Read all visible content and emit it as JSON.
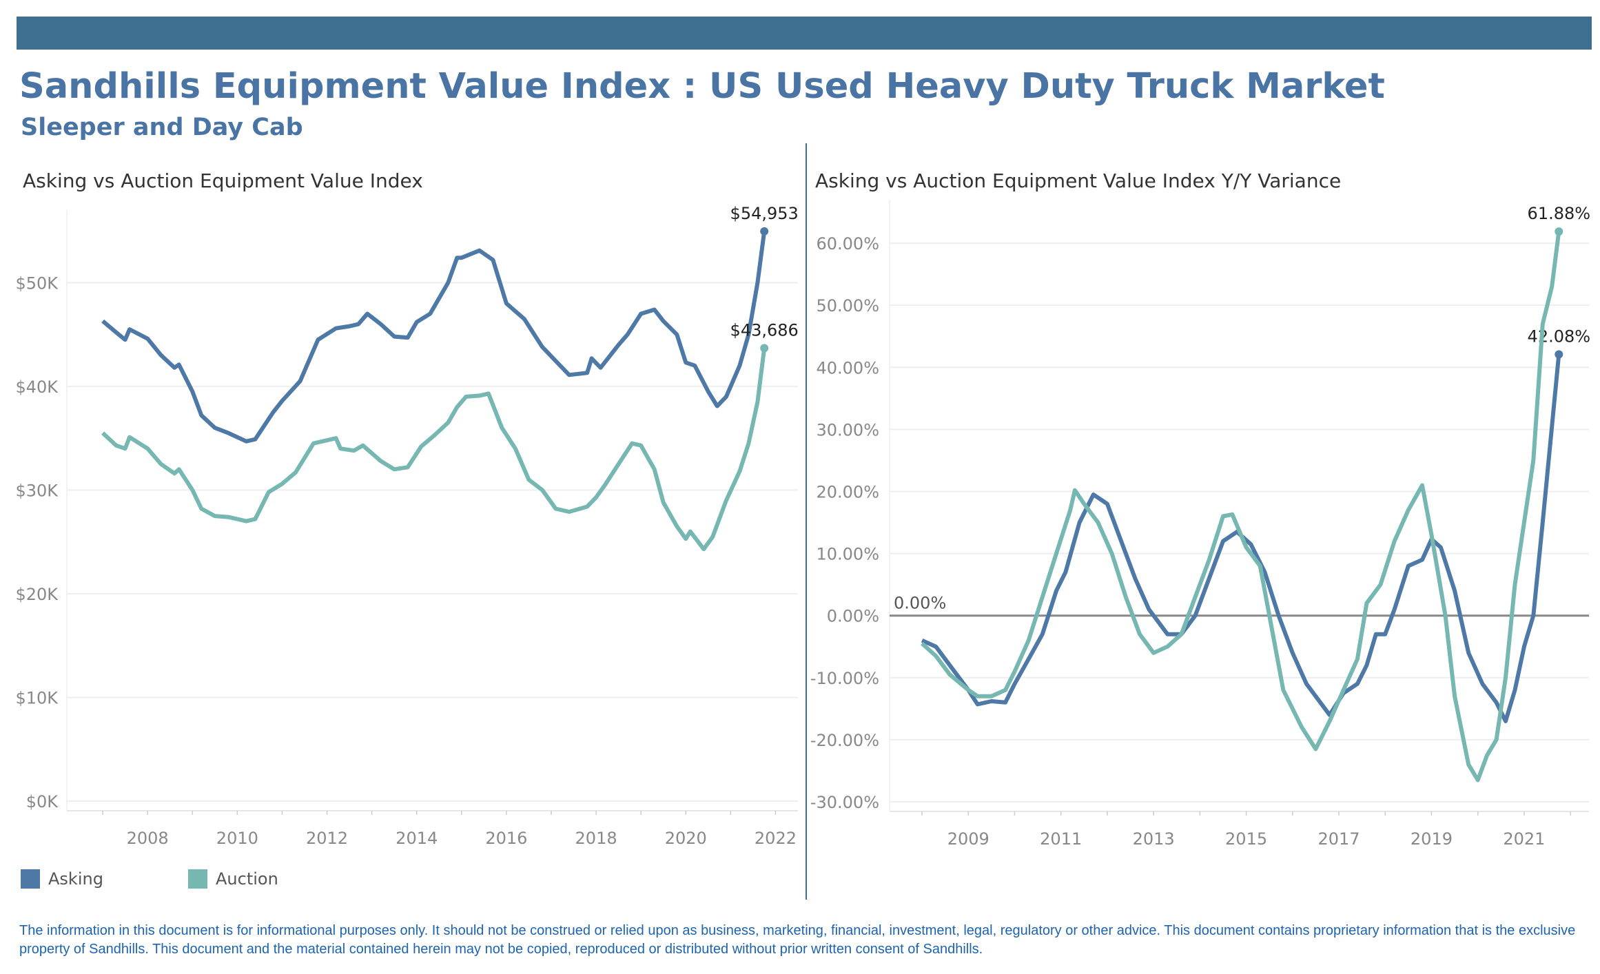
{
  "header": {
    "title": "Sandhills Equipment Value Index : US Used Heavy Duty Truck Market",
    "subtitle": "Sleeper and Day Cab"
  },
  "colors": {
    "asking": "#4e79a7",
    "auction": "#76b7b2",
    "bar": "#3d7090",
    "title": "#4a74a3"
  },
  "legend": [
    {
      "name": "Asking",
      "color": "#4e79a7"
    },
    {
      "name": "Auction",
      "color": "#76b7b2"
    }
  ],
  "footer": "The information in this document is for informational purposes only.  It should not be construed or relied upon as business, marketing, financial, investment, legal, regulatory or other advice. This document contains proprietary information that is the exclusive property of Sandhills. This document and the material contained herein may not be copied, reproduced or distributed without prior written consent of Sandhills.",
  "chart_data": [
    {
      "type": "line",
      "title": "Asking vs Auction Equipment Value Index",
      "xlabel": "",
      "ylabel": "",
      "xlim": [
        2006.2,
        2022.5
      ],
      "ylim": [
        0,
        57000
      ],
      "grid": true,
      "xticks": [
        2008,
        2010,
        2012,
        2014,
        2016,
        2018,
        2020,
        2022
      ],
      "xtick_labels": [
        "2008",
        "2010",
        "2012",
        "2014",
        "2016",
        "2018",
        "2020",
        "2022"
      ],
      "yticks": [
        0,
        10000,
        20000,
        30000,
        40000,
        50000
      ],
      "ytick_labels": [
        "$0K",
        "$10K",
        "$20K",
        "$30K",
        "$40K",
        "$50K"
      ],
      "series": [
        {
          "name": "Asking",
          "color": "#4e79a7",
          "end_label": "$54,953",
          "points": [
            [
              2007.0,
              46300
            ],
            [
              2007.3,
              45200
            ],
            [
              2007.5,
              44500
            ],
            [
              2007.6,
              45500
            ],
            [
              2008.0,
              44600
            ],
            [
              2008.3,
              43000
            ],
            [
              2008.6,
              41800
            ],
            [
              2008.7,
              42100
            ],
            [
              2009.0,
              39500
            ],
            [
              2009.2,
              37200
            ],
            [
              2009.5,
              36000
            ],
            [
              2009.8,
              35500
            ],
            [
              2010.2,
              34700
            ],
            [
              2010.4,
              34900
            ],
            [
              2010.8,
              37500
            ],
            [
              2011.0,
              38600
            ],
            [
              2011.4,
              40500
            ],
            [
              2011.8,
              44500
            ],
            [
              2012.2,
              45600
            ],
            [
              2012.5,
              45800
            ],
            [
              2012.7,
              46000
            ],
            [
              2012.9,
              47000
            ],
            [
              2013.2,
              46000
            ],
            [
              2013.5,
              44800
            ],
            [
              2013.8,
              44700
            ],
            [
              2014.0,
              46200
            ],
            [
              2014.3,
              47000
            ],
            [
              2014.7,
              50000
            ],
            [
              2014.9,
              52400
            ],
            [
              2015.0,
              52400
            ],
            [
              2015.4,
              53100
            ],
            [
              2015.7,
              52200
            ],
            [
              2016.0,
              48000
            ],
            [
              2016.4,
              46500
            ],
            [
              2016.8,
              43800
            ],
            [
              2017.2,
              42000
            ],
            [
              2017.4,
              41100
            ],
            [
              2017.8,
              41300
            ],
            [
              2017.9,
              42700
            ],
            [
              2018.1,
              41800
            ],
            [
              2018.5,
              44000
            ],
            [
              2018.7,
              45000
            ],
            [
              2019.0,
              47000
            ],
            [
              2019.3,
              47400
            ],
            [
              2019.5,
              46300
            ],
            [
              2019.8,
              45000
            ],
            [
              2020.0,
              42300
            ],
            [
              2020.2,
              42000
            ],
            [
              2020.5,
              39500
            ],
            [
              2020.7,
              38100
            ],
            [
              2020.9,
              39000
            ],
            [
              2021.2,
              42000
            ],
            [
              2021.4,
              45000
            ],
            [
              2021.6,
              50000
            ],
            [
              2021.75,
              54953
            ]
          ]
        },
        {
          "name": "Auction",
          "color": "#76b7b2",
          "end_label": "$43,686",
          "points": [
            [
              2007.0,
              35500
            ],
            [
              2007.3,
              34300
            ],
            [
              2007.5,
              34000
            ],
            [
              2007.6,
              35100
            ],
            [
              2008.0,
              34000
            ],
            [
              2008.3,
              32500
            ],
            [
              2008.6,
              31600
            ],
            [
              2008.7,
              32000
            ],
            [
              2009.0,
              30000
            ],
            [
              2009.2,
              28200
            ],
            [
              2009.5,
              27500
            ],
            [
              2009.8,
              27400
            ],
            [
              2010.2,
              27000
            ],
            [
              2010.4,
              27200
            ],
            [
              2010.7,
              29800
            ],
            [
              2011.0,
              30600
            ],
            [
              2011.3,
              31700
            ],
            [
              2011.7,
              34500
            ],
            [
              2012.0,
              34800
            ],
            [
              2012.2,
              35000
            ],
            [
              2012.3,
              34000
            ],
            [
              2012.6,
              33800
            ],
            [
              2012.8,
              34300
            ],
            [
              2013.2,
              32800
            ],
            [
              2013.5,
              32000
            ],
            [
              2013.8,
              32200
            ],
            [
              2014.1,
              34200
            ],
            [
              2014.4,
              35300
            ],
            [
              2014.7,
              36500
            ],
            [
              2014.9,
              38000
            ],
            [
              2015.1,
              39000
            ],
            [
              2015.4,
              39100
            ],
            [
              2015.6,
              39300
            ],
            [
              2015.9,
              36000
            ],
            [
              2016.2,
              34000
            ],
            [
              2016.5,
              31000
            ],
            [
              2016.8,
              30000
            ],
            [
              2017.1,
              28200
            ],
            [
              2017.4,
              27900
            ],
            [
              2017.8,
              28400
            ],
            [
              2018.0,
              29300
            ],
            [
              2018.2,
              30500
            ],
            [
              2018.5,
              32500
            ],
            [
              2018.8,
              34500
            ],
            [
              2019.0,
              34300
            ],
            [
              2019.3,
              32000
            ],
            [
              2019.5,
              28800
            ],
            [
              2019.8,
              26500
            ],
            [
              2020.0,
              25300
            ],
            [
              2020.1,
              26000
            ],
            [
              2020.4,
              24300
            ],
            [
              2020.6,
              25500
            ],
            [
              2020.9,
              29000
            ],
            [
              2021.2,
              31800
            ],
            [
              2021.4,
              34500
            ],
            [
              2021.6,
              38500
            ],
            [
              2021.75,
              43686
            ]
          ]
        }
      ]
    },
    {
      "type": "line",
      "title": "Asking vs Auction Equipment Value Index Y/Y Variance",
      "xlabel": "",
      "ylabel": "",
      "xlim": [
        2007.3,
        2022.4
      ],
      "ylim": [
        -30,
        67
      ],
      "grid": true,
      "xticks": [
        2009,
        2011,
        2013,
        2015,
        2017,
        2019,
        2021
      ],
      "xtick_labels": [
        "2009",
        "2011",
        "2013",
        "2015",
        "2017",
        "2019",
        "2021"
      ],
      "yticks": [
        -30,
        -20,
        -10,
        0,
        10,
        20,
        30,
        40,
        50,
        60
      ],
      "ytick_labels": [
        "-30.00%",
        "-20.00%",
        "-10.00%",
        "0.00%",
        "10.00%",
        "20.00%",
        "30.00%",
        "40.00%",
        "50.00%",
        "60.00%"
      ],
      "reference_line": {
        "value": 0,
        "label": "0.00%"
      },
      "series": [
        {
          "name": "Asking",
          "color": "#4e79a7",
          "end_label": "42.08%",
          "points": [
            [
              2008.0,
              -4
            ],
            [
              2008.3,
              -5
            ],
            [
              2008.6,
              -8
            ],
            [
              2009.0,
              -12
            ],
            [
              2009.2,
              -14.3
            ],
            [
              2009.5,
              -13.8
            ],
            [
              2009.8,
              -14
            ],
            [
              2010.0,
              -11
            ],
            [
              2010.3,
              -7
            ],
            [
              2010.6,
              -3
            ],
            [
              2010.9,
              4
            ],
            [
              2011.1,
              7
            ],
            [
              2011.4,
              15
            ],
            [
              2011.7,
              19.5
            ],
            [
              2012.0,
              18
            ],
            [
              2012.3,
              12
            ],
            [
              2012.6,
              6
            ],
            [
              2012.9,
              1
            ],
            [
              2013.1,
              -1
            ],
            [
              2013.3,
              -3
            ],
            [
              2013.6,
              -3
            ],
            [
              2013.9,
              0
            ],
            [
              2014.2,
              6
            ],
            [
              2014.5,
              12
            ],
            [
              2014.8,
              13.5
            ],
            [
              2015.1,
              11.5
            ],
            [
              2015.4,
              7
            ],
            [
              2015.7,
              0
            ],
            [
              2016.0,
              -6
            ],
            [
              2016.3,
              -11
            ],
            [
              2016.6,
              -14
            ],
            [
              2016.8,
              -16
            ],
            [
              2017.1,
              -12.5
            ],
            [
              2017.4,
              -11
            ],
            [
              2017.6,
              -8
            ],
            [
              2017.8,
              -3
            ],
            [
              2018.0,
              -3
            ],
            [
              2018.2,
              1
            ],
            [
              2018.5,
              8
            ],
            [
              2018.8,
              9
            ],
            [
              2019.0,
              12.3
            ],
            [
              2019.2,
              11
            ],
            [
              2019.5,
              4
            ],
            [
              2019.8,
              -6
            ],
            [
              2020.1,
              -11
            ],
            [
              2020.4,
              -14
            ],
            [
              2020.6,
              -17
            ],
            [
              2020.8,
              -12
            ],
            [
              2021.0,
              -5
            ],
            [
              2021.2,
              0
            ],
            [
              2021.4,
              15
            ],
            [
              2021.75,
              42.08
            ]
          ]
        },
        {
          "name": "Auction",
          "color": "#76b7b2",
          "end_label": "61.88%",
          "points": [
            [
              2008.0,
              -4.5
            ],
            [
              2008.3,
              -6.5
            ],
            [
              2008.6,
              -9.5
            ],
            [
              2009.0,
              -12
            ],
            [
              2009.2,
              -13
            ],
            [
              2009.5,
              -13
            ],
            [
              2009.8,
              -12
            ],
            [
              2010.0,
              -9
            ],
            [
              2010.3,
              -4
            ],
            [
              2010.6,
              3
            ],
            [
              2010.9,
              10
            ],
            [
              2011.2,
              17
            ],
            [
              2011.3,
              20.2
            ],
            [
              2011.5,
              18
            ],
            [
              2011.8,
              15
            ],
            [
              2012.1,
              10
            ],
            [
              2012.4,
              3
            ],
            [
              2012.7,
              -3
            ],
            [
              2013.0,
              -6
            ],
            [
              2013.3,
              -5
            ],
            [
              2013.6,
              -3
            ],
            [
              2013.9,
              3
            ],
            [
              2014.2,
              9
            ],
            [
              2014.5,
              16
            ],
            [
              2014.7,
              16.3
            ],
            [
              2015.0,
              11
            ],
            [
              2015.3,
              8
            ],
            [
              2015.5,
              0
            ],
            [
              2015.8,
              -12
            ],
            [
              2016.2,
              -18
            ],
            [
              2016.5,
              -21.5
            ],
            [
              2016.8,
              -17
            ],
            [
              2017.1,
              -12
            ],
            [
              2017.4,
              -7
            ],
            [
              2017.6,
              2
            ],
            [
              2017.9,
              5
            ],
            [
              2018.2,
              12
            ],
            [
              2018.5,
              17
            ],
            [
              2018.8,
              21
            ],
            [
              2019.0,
              13
            ],
            [
              2019.3,
              0
            ],
            [
              2019.5,
              -13
            ],
            [
              2019.8,
              -24
            ],
            [
              2020.0,
              -26.5
            ],
            [
              2020.2,
              -22.5
            ],
            [
              2020.4,
              -20
            ],
            [
              2020.6,
              -10
            ],
            [
              2020.8,
              5
            ],
            [
              2021.0,
              15
            ],
            [
              2021.2,
              25
            ],
            [
              2021.4,
              47
            ],
            [
              2021.6,
              53
            ],
            [
              2021.75,
              61.88
            ]
          ]
        }
      ]
    }
  ]
}
